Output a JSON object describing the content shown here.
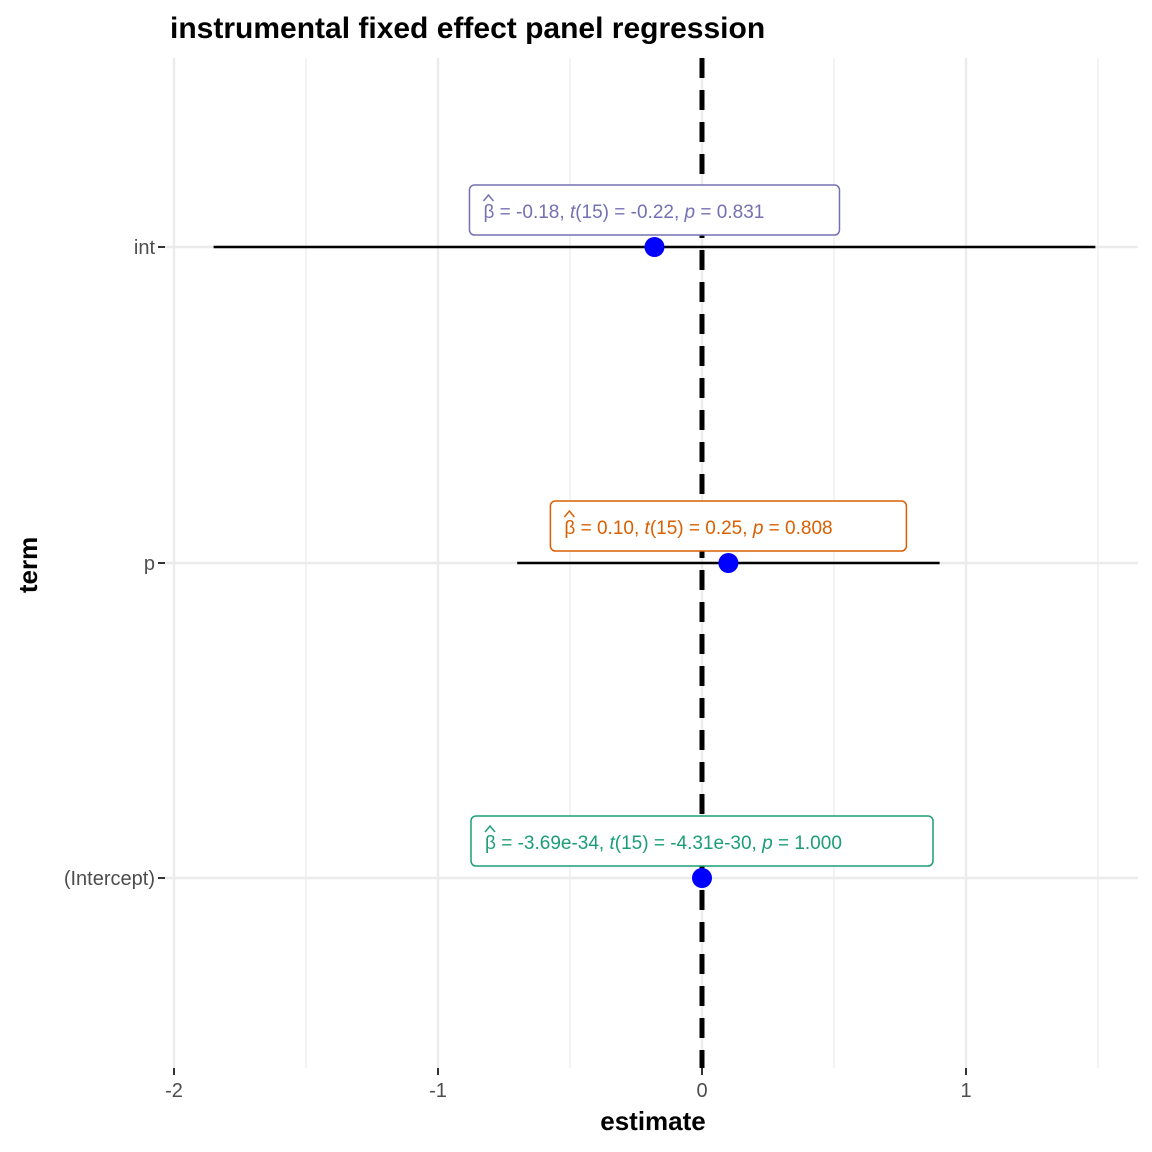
{
  "chart_data": {
    "type": "scatter",
    "title": "instrumental fixed effect panel regression",
    "xlabel": "estimate",
    "ylabel": "term",
    "xlim": [
      -2.0,
      1.65
    ],
    "x_ticks": [
      "-2",
      "-1",
      "0",
      "1"
    ],
    "x_tick_values": [
      -2,
      -1,
      0,
      1
    ],
    "grid": true,
    "reference_line": {
      "x": 0,
      "style": "dashed"
    },
    "point_color": "#0000ff",
    "categories": [
      "int",
      "p",
      "(Intercept)"
    ],
    "terms": [
      {
        "term": "int",
        "estimate": -0.18,
        "conf_low": -1.85,
        "conf_high": 1.49,
        "label": {
          "beta": "-0.18",
          "df": "15",
          "t": "-0.22",
          "p": "0.831"
        },
        "color": "#7570b3"
      },
      {
        "term": "p",
        "estimate": 0.1,
        "conf_low": -0.7,
        "conf_high": 0.9,
        "label": {
          "beta": "0.10",
          "df": "15",
          "t": "0.25",
          "p": "0.808"
        },
        "color": "#d95f02"
      },
      {
        "term": "(Intercept)",
        "estimate": 0.0,
        "conf_low": 0.0,
        "conf_high": 0.0,
        "label": {
          "beta": "-3.69e-34",
          "df": "15",
          "t": "-4.31e-30",
          "p": "1.000"
        },
        "color": "#1b9e77"
      }
    ]
  }
}
